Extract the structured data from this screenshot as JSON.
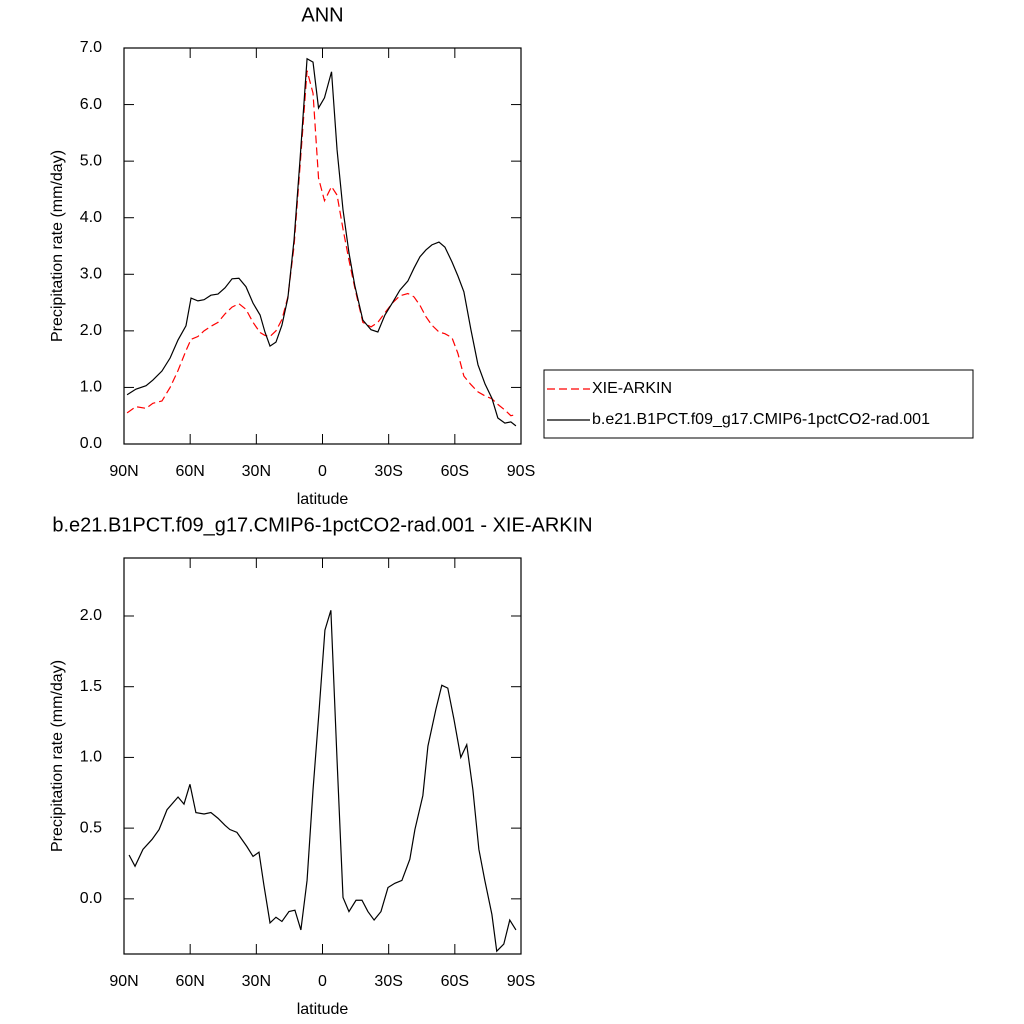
{
  "chart_data": [
    {
      "type": "line",
      "title": "ANN",
      "xlabel": "latitude",
      "ylabel": "Precipitation rate (mm/day)",
      "x": [
        88.6,
        84.6,
        80.0,
        76.9,
        72.8,
        69.1,
        65.5,
        61.9,
        59.6,
        56.5,
        53.7,
        50.6,
        47.4,
        44.2,
        41.0,
        37.9,
        34.7,
        31.5,
        28.3,
        26.1,
        23.8,
        21.1,
        18.4,
        15.7,
        12.9,
        10.2,
        7.0,
        4.3,
        1.8,
        -0.9,
        -4.1,
        -6.6,
        -9.3,
        -12.0,
        -14.7,
        -18.3,
        -22.0,
        -25.1,
        -28.3,
        -31.9,
        -35.1,
        -38.7,
        -41.5,
        -44.2,
        -46.9,
        -49.6,
        -52.8,
        -55.5,
        -58.7,
        -61.4,
        -64.1,
        -67.3,
        -70.5,
        -73.7,
        -76.8,
        -79.5,
        -82.7,
        -85.4,
        -87.7
      ],
      "series": [
        {
          "name": "XIE-ARKIN",
          "color": "#ff0000",
          "dash": "dashed",
          "values": [
            0.55,
            0.66,
            0.63,
            0.72,
            0.76,
            1.0,
            1.3,
            1.65,
            1.85,
            1.9,
            2.0,
            2.08,
            2.15,
            2.3,
            2.42,
            2.48,
            2.38,
            2.15,
            1.97,
            1.92,
            1.9,
            2.0,
            2.2,
            2.6,
            3.5,
            4.9,
            6.6,
            6.2,
            4.7,
            4.3,
            4.55,
            4.4,
            3.8,
            3.25,
            2.75,
            2.15,
            2.07,
            2.15,
            2.32,
            2.5,
            2.62,
            2.66,
            2.6,
            2.45,
            2.25,
            2.1,
            1.98,
            1.95,
            1.88,
            1.6,
            1.2,
            1.05,
            0.92,
            0.85,
            0.8,
            0.7,
            0.6,
            0.5,
            0.52
          ]
        },
        {
          "name": "b.e21.B1PCT.f09_g17.CMIP6-1pctCO2-rad.001",
          "color": "#000000",
          "dash": "solid",
          "values": [
            0.87,
            0.97,
            1.03,
            1.13,
            1.29,
            1.52,
            1.84,
            2.09,
            2.58,
            2.53,
            2.55,
            2.63,
            2.65,
            2.76,
            2.92,
            2.93,
            2.78,
            2.49,
            2.28,
            1.98,
            1.73,
            1.8,
            2.1,
            2.58,
            3.61,
            5.02,
            6.81,
            6.75,
            5.94,
            6.12,
            6.58,
            5.2,
            4.14,
            3.38,
            2.79,
            2.19,
            2.02,
            1.98,
            2.28,
            2.51,
            2.72,
            2.88,
            3.11,
            3.31,
            3.43,
            3.52,
            3.57,
            3.48,
            3.22,
            2.97,
            2.69,
            2.02,
            1.4,
            1.06,
            0.81,
            0.46,
            0.37,
            0.39,
            0.32
          ]
        }
      ],
      "xlim": [
        90,
        -90
      ],
      "xticks": [
        {
          "value": 90,
          "label": "90N"
        },
        {
          "value": 60,
          "label": "60N"
        },
        {
          "value": 30,
          "label": "30N"
        },
        0,
        {
          "value": -30,
          "label": "30S"
        },
        {
          "value": -60,
          "label": "60S"
        },
        {
          "value": -90,
          "label": "90S"
        }
      ],
      "ylim": [
        0,
        7
      ],
      "yticks": [
        {
          "value": 0,
          "label": "0.0"
        },
        {
          "value": 1,
          "label": "1.0"
        },
        {
          "value": 2,
          "label": "2.0"
        },
        {
          "value": 3,
          "label": "3.0"
        },
        {
          "value": 4,
          "label": "4.0"
        },
        {
          "value": 5,
          "label": "5.0"
        },
        {
          "value": 6,
          "label": "6.0"
        },
        {
          "value": 7,
          "label": "7.0"
        }
      ],
      "legend": "right"
    },
    {
      "type": "line",
      "title": "b.e21.B1PCT.f09_g17.CMIP6-1pctCO2-rad.001 - XIE-ARKIN",
      "xlabel": "latitude",
      "ylabel": "Precipitation rate (mm/day)",
      "x": [
        87.7,
        85.0,
        81.4,
        77.3,
        74.1,
        70.5,
        65.5,
        62.8,
        60.1,
        57.4,
        53.7,
        50.6,
        47.4,
        44.2,
        42.0,
        38.8,
        34.3,
        31.5,
        28.8,
        26.6,
        23.8,
        21.1,
        18.4,
        15.2,
        12.5,
        9.8,
        7.0,
        4.3,
        1.6,
        -1.1,
        -3.8,
        -6.6,
        -9.3,
        -12.0,
        -15.2,
        -17.9,
        -20.6,
        -23.4,
        -26.5,
        -29.7,
        -32.8,
        -36.0,
        -39.6,
        -41.9,
        -45.5,
        -47.8,
        -51.4,
        -54.1,
        -56.8,
        -59.6,
        -62.7,
        -65.4,
        -68.2,
        -70.9,
        -73.6,
        -76.8,
        -79.0,
        -82.2,
        -84.9,
        -87.7
      ],
      "color": "#000000",
      "values": [
        0.31,
        0.23,
        0.35,
        0.42,
        0.49,
        0.63,
        0.72,
        0.67,
        0.81,
        0.61,
        0.6,
        0.61,
        0.57,
        0.52,
        0.49,
        0.47,
        0.37,
        0.3,
        0.33,
        0.1,
        -0.17,
        -0.13,
        -0.16,
        -0.09,
        -0.08,
        -0.22,
        0.13,
        0.77,
        1.32,
        1.9,
        2.04,
        0.98,
        0.01,
        -0.09,
        -0.01,
        -0.01,
        -0.09,
        -0.15,
        -0.09,
        0.08,
        0.11,
        0.13,
        0.28,
        0.49,
        0.73,
        1.08,
        1.34,
        1.51,
        1.49,
        1.27,
        1.0,
        1.09,
        0.77,
        0.35,
        0.13,
        -0.11,
        -0.37,
        -0.32,
        -0.15,
        -0.22
      ],
      "xlim": [
        90,
        -90
      ],
      "xticks": [
        {
          "value": 90,
          "label": "90N"
        },
        {
          "value": 60,
          "label": "60N"
        },
        {
          "value": 30,
          "label": "30N"
        },
        0,
        {
          "value": -30,
          "label": "30S"
        },
        {
          "value": -60,
          "label": "60S"
        },
        {
          "value": -90,
          "label": "90S"
        }
      ],
      "ylim": [
        -0.39,
        2.41
      ],
      "yticks": [
        {
          "value": 0,
          "label": "0.0"
        },
        0.5,
        {
          "value": 1,
          "label": "1.0"
        },
        1.5,
        {
          "value": 2,
          "label": "2.0"
        }
      ]
    }
  ]
}
